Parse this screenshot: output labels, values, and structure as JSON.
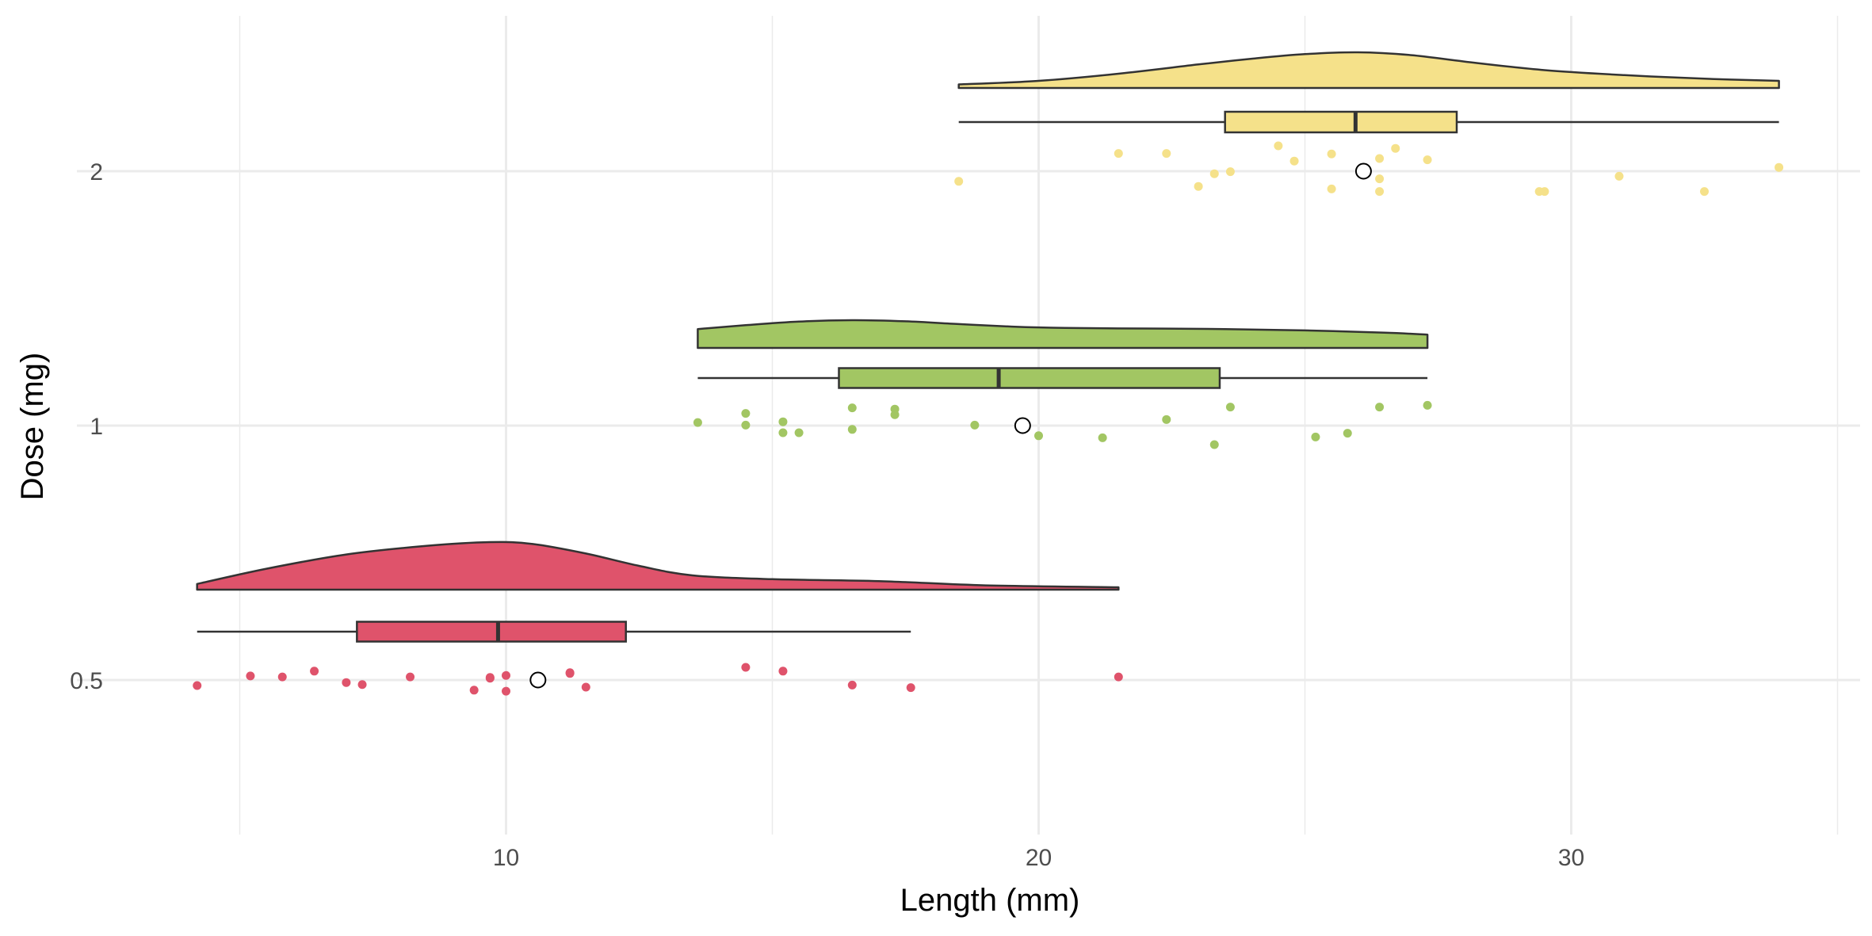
{
  "chart_data": {
    "type": "raincloud",
    "title": "",
    "xlabel": "Length (mm)",
    "ylabel": "Dose (mg)",
    "xlim": [
      2.5,
      36.2
    ],
    "x_ticks": [
      10,
      20,
      30
    ],
    "x_minor_ticks": [
      5,
      15,
      25,
      35
    ],
    "grid": true,
    "legend": "none",
    "categories": [
      "0.5",
      "1",
      "2"
    ],
    "series": [
      {
        "name": "0.5",
        "color": "#DF536B",
        "points": [
          4.2,
          5.2,
          5.8,
          6.4,
          7.0,
          7.3,
          8.2,
          9.4,
          9.7,
          9.7,
          10.0,
          10.0,
          11.2,
          11.2,
          11.5,
          14.5,
          15.2,
          16.5,
          17.6,
          21.5
        ],
        "jitter": [
          -0.022,
          0.016,
          0.012,
          0.035,
          -0.01,
          -0.018,
          0.012,
          -0.04,
          0.007,
          0.01,
          -0.044,
          0.018,
          0.029,
          0.026,
          -0.028,
          0.05,
          0.035,
          -0.02,
          -0.03,
          0.012
        ],
        "box": {
          "min": 4.2,
          "q1": 7.2,
          "median": 9.85,
          "q3": 12.25,
          "max": 17.6
        },
        "mean": 10.6,
        "density_x": [
          4.2,
          5.5,
          7,
          8.5,
          9.7,
          10.5,
          11.5,
          12.5,
          13.5,
          15,
          17,
          19,
          21.5
        ],
        "density_y": [
          0.12,
          0.44,
          0.74,
          0.92,
          1.0,
          0.96,
          0.76,
          0.5,
          0.3,
          0.22,
          0.18,
          0.09,
          0.05
        ]
      },
      {
        "name": "1",
        "color": "#A2C663",
        "points": [
          13.6,
          14.5,
          14.5,
          15.2,
          15.2,
          15.5,
          16.5,
          16.5,
          17.3,
          17.3,
          18.8,
          19.7,
          20.0,
          21.2,
          22.4,
          23.3,
          23.6,
          25.2,
          25.8,
          26.4,
          27.3
        ],
        "jitter": [
          0.012,
          0.002,
          0.048,
          0.015,
          -0.028,
          -0.028,
          0.07,
          -0.015,
          0.065,
          0.043,
          0.002,
          -0.012,
          -0.04,
          -0.048,
          0.024,
          -0.075,
          0.073,
          -0.045,
          -0.03,
          0.073,
          0.08
        ],
        "box": {
          "min": 13.6,
          "q1": 16.25,
          "median": 19.25,
          "q3": 23.4,
          "max": 27.3
        },
        "mean": 19.7,
        "density_x": [
          13.6,
          14.5,
          15.5,
          16.5,
          17.5,
          18.5,
          19.5,
          20.5,
          22,
          23.5,
          25,
          26.5,
          27.3
        ],
        "density_y": [
          0.68,
          0.82,
          0.95,
          1.0,
          0.96,
          0.86,
          0.77,
          0.72,
          0.7,
          0.68,
          0.63,
          0.55,
          0.48
        ]
      },
      {
        "name": "2",
        "color": "#F5E18A",
        "points": [
          18.5,
          21.5,
          22.4,
          23.0,
          23.3,
          23.6,
          24.5,
          24.8,
          25.5,
          25.5,
          26.4,
          26.4,
          26.4,
          26.7,
          27.3,
          29.4,
          29.5,
          30.9,
          32.5,
          33.9
        ],
        "jitter": [
          -0.04,
          0.07,
          0.07,
          -0.06,
          -0.01,
          -0.002,
          0.1,
          0.04,
          0.068,
          -0.07,
          0.05,
          -0.03,
          -0.08,
          0.09,
          0.045,
          -0.08,
          -0.08,
          -0.02,
          -0.08,
          0.015
        ],
        "box": {
          "min": 18.5,
          "q1": 23.5,
          "median": 25.95,
          "q3": 27.85,
          "max": 33.9
        },
        "mean": 26.1,
        "density_x": [
          18.5,
          20,
          21.5,
          23,
          24,
          25,
          26,
          27,
          28,
          29.5,
          31,
          32.5,
          33.9
        ],
        "density_y": [
          0.1,
          0.2,
          0.4,
          0.66,
          0.82,
          0.95,
          1.0,
          0.92,
          0.74,
          0.5,
          0.36,
          0.26,
          0.2
        ]
      }
    ]
  }
}
